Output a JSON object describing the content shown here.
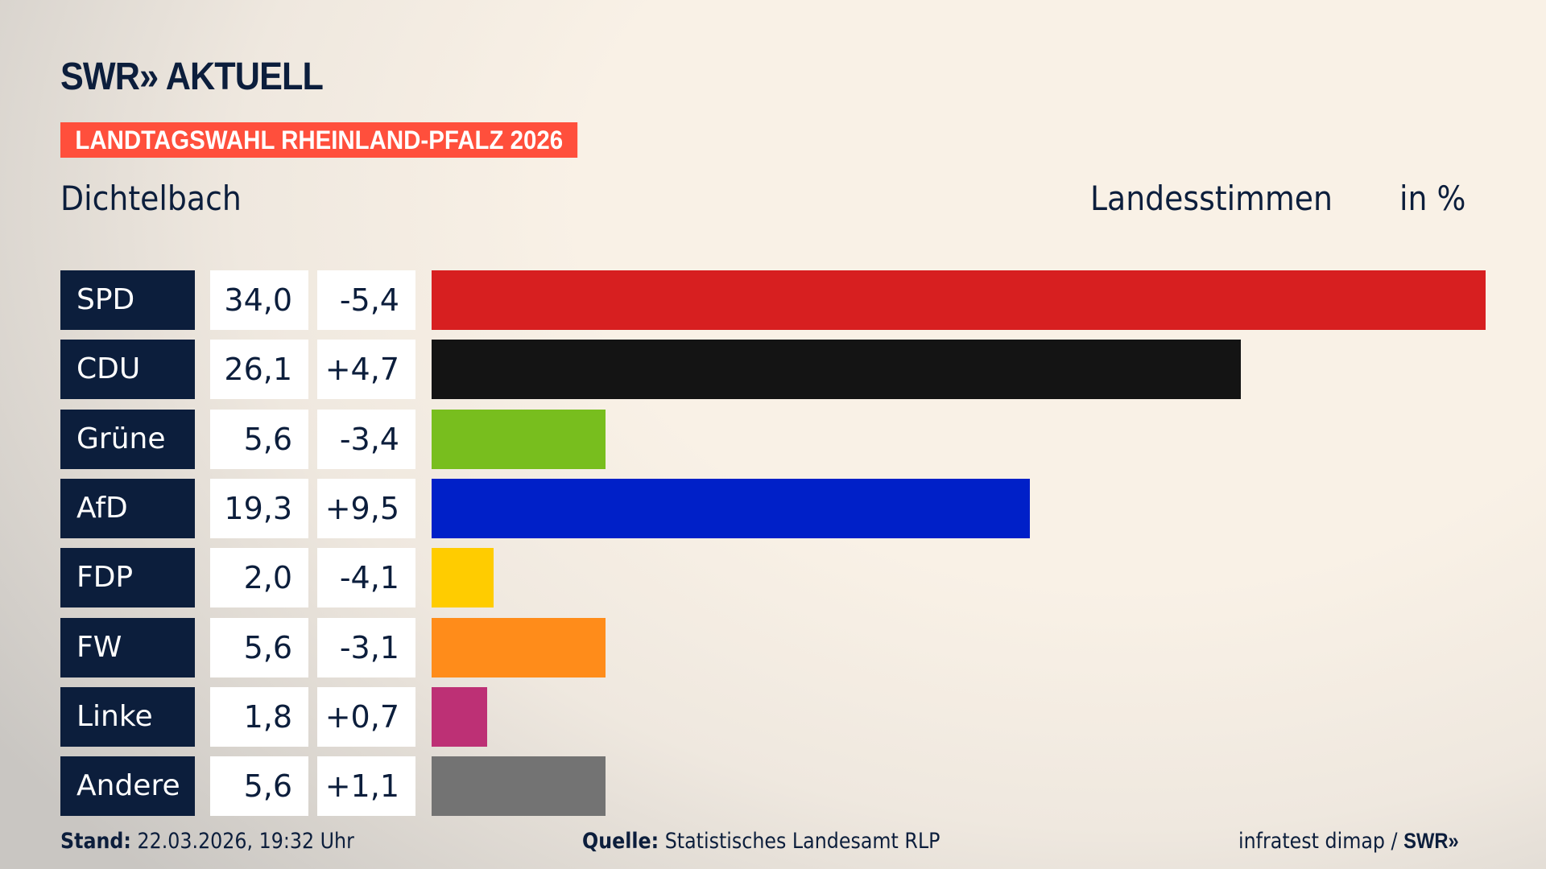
{
  "logo": "SWR» AKTUELL",
  "banner": "LANDTAGSWAHL RHEINLAND-PFALZ 2026",
  "place": "Dichtelbach",
  "header": {
    "votes": "Landesstimmen",
    "unit": "in %"
  },
  "chart_data": {
    "type": "bar",
    "orientation": "horizontal",
    "categories": [
      "SPD",
      "CDU",
      "Grüne",
      "AfD",
      "FDP",
      "FW",
      "Linke",
      "Andere"
    ],
    "values": [
      34.0,
      26.1,
      5.6,
      19.3,
      2.0,
      5.6,
      1.8,
      5.6
    ],
    "value_labels": [
      "34,0",
      "26,1",
      "5,6",
      "19,3",
      "2,0",
      "5,6",
      "1,8",
      "5,6"
    ],
    "diff_labels": [
      "-5,4",
      "+4,7",
      "-3,4",
      "+9,5",
      "-4,1",
      "-3,1",
      "+0,7",
      "+1,1"
    ],
    "diffs": [
      -5.4,
      4.7,
      -3.4,
      9.5,
      -4.1,
      -3.1,
      0.7,
      1.1
    ],
    "colors": [
      "#d71f20",
      "#141414",
      "#78be1e",
      "#0020c8",
      "#ffcc00",
      "#ff8c1a",
      "#bd3075",
      "#737373"
    ],
    "xlim": [
      0,
      34.0
    ],
    "grid": false
  },
  "footer": {
    "stand_label": "Stand:",
    "stand_value": "22.03.2026, 19:32 Uhr",
    "source_label": "Quelle:",
    "source_value": "Statistisches Landesamt RLP",
    "credit": "infratest dimap / ",
    "credit_logo": "SWR»"
  }
}
